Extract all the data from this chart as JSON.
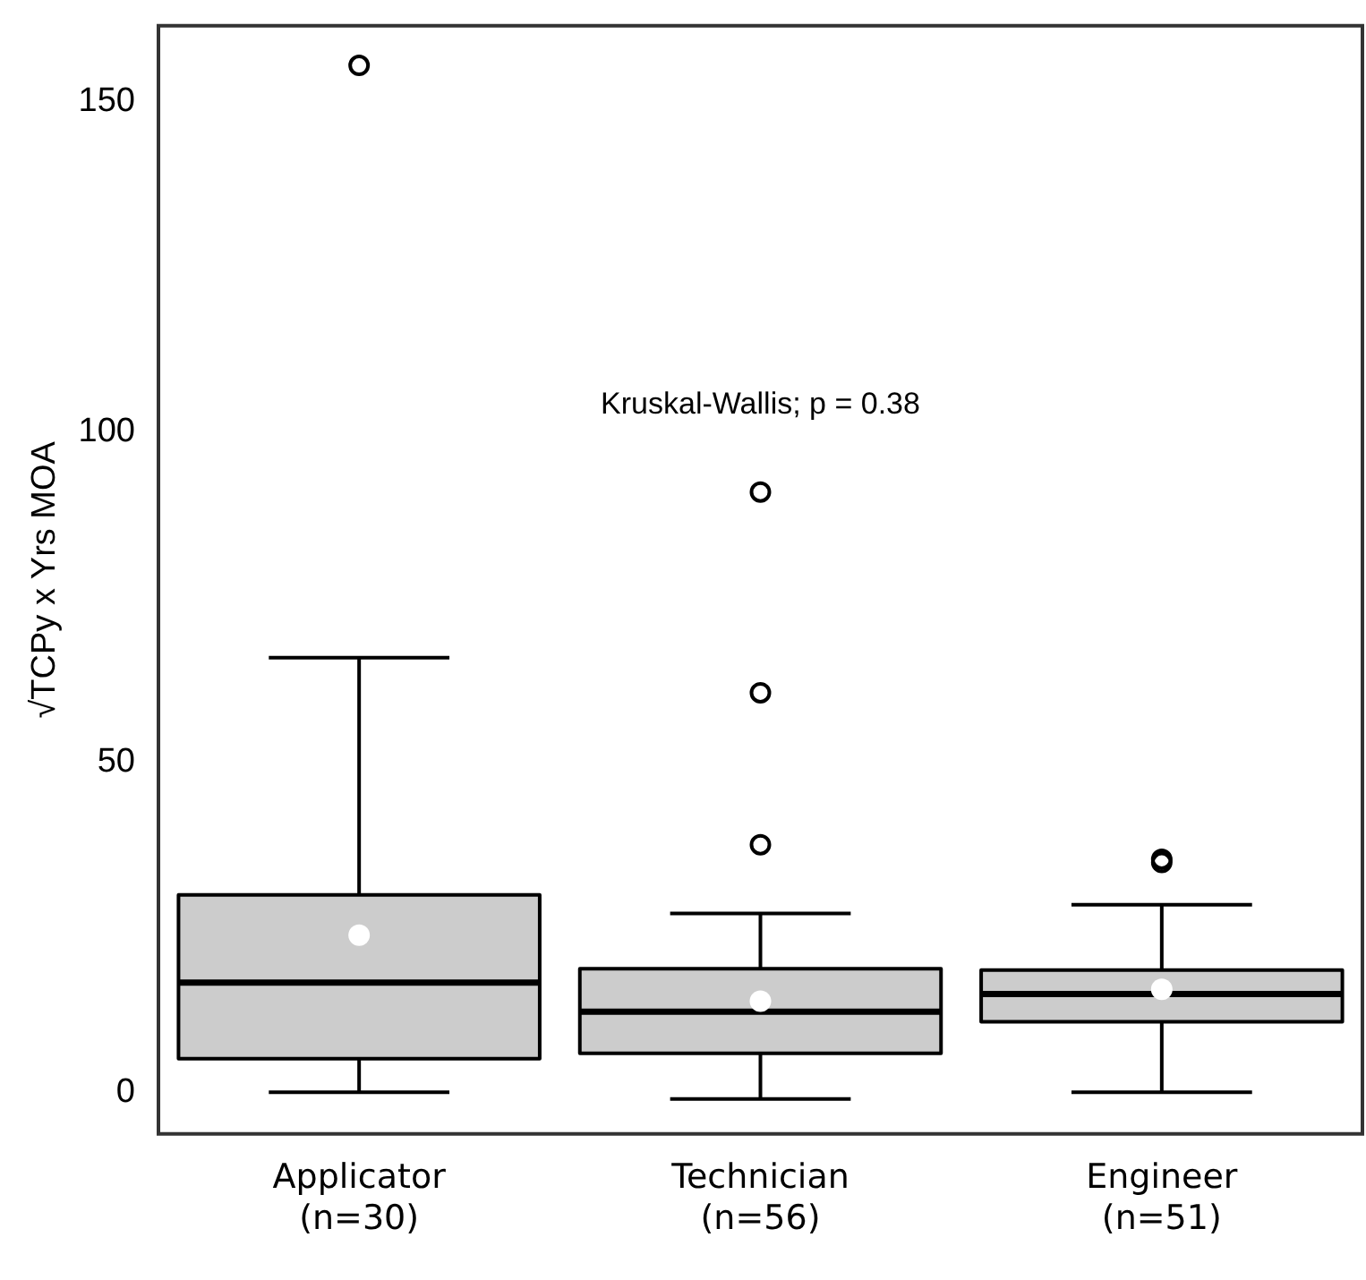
{
  "chart_data": {
    "type": "box",
    "categories": [
      "Applicator\n(n=30)",
      "Technician\n(n=56)",
      "Engineer\n(n=51)"
    ],
    "ylabel": "√TCPy x Yrs MOA",
    "color": "#cccccc",
    "boxes": [
      {
        "low": 0,
        "q1": 5.1,
        "median": 16.6,
        "q3": 29.9,
        "high": 65.8,
        "mean": 23.8,
        "outliers": [
          155.5
        ]
      },
      {
        "low": -1,
        "q1": 5.9,
        "median": 12.2,
        "q3": 18.7,
        "high": 27.1,
        "mean": 13.8,
        "outliers": [
          37.5,
          60.5,
          90.9
        ]
      },
      {
        "low": 0,
        "q1": 10.7,
        "median": 14.9,
        "q3": 18.5,
        "high": 28.4,
        "mean": 15.6,
        "outliers": [
          34.8,
          35.3
        ]
      }
    ],
    "ylim": [
      -6.3,
      161.5
    ],
    "yticks": [
      0,
      50,
      100,
      150
    ],
    "annotations": [
      "Kruskal-Wallis; p = 0.38"
    ],
    "grid": false,
    "legend": false
  }
}
